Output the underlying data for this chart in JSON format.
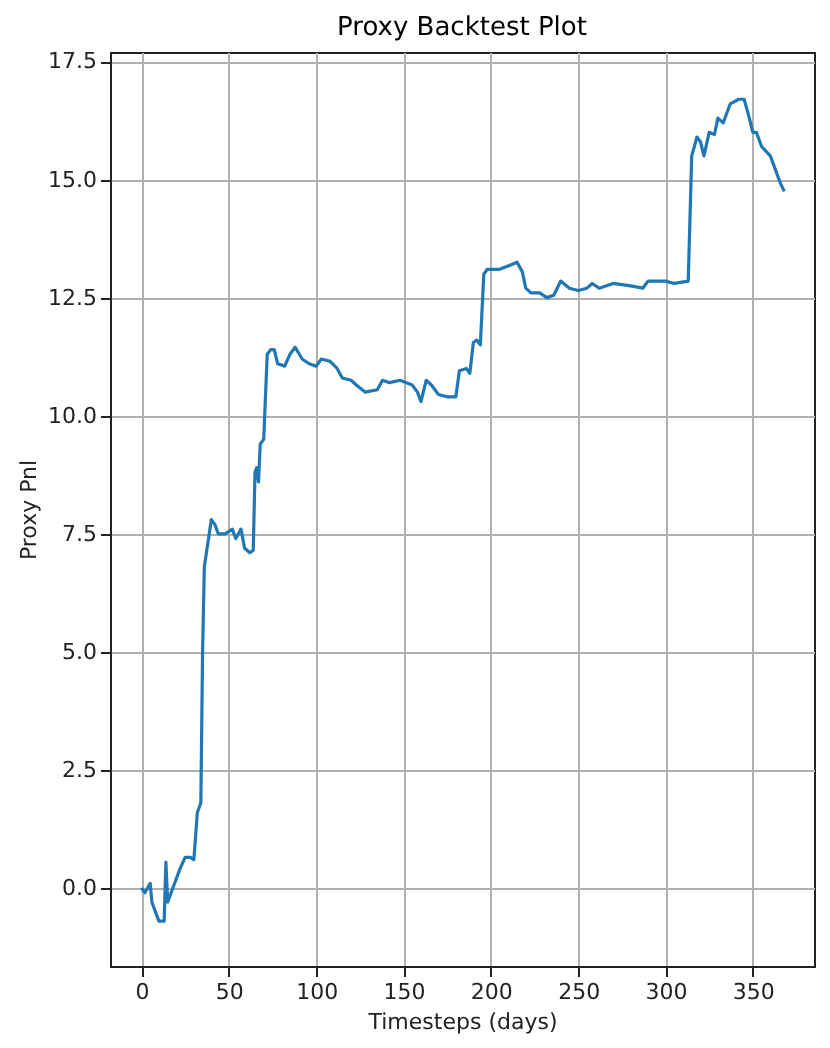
{
  "chart_data": {
    "type": "line",
    "title": "Proxy Backtest Plot",
    "xlabel": "Timesteps (days)",
    "ylabel": "Proxy Pnl",
    "x": [
      0,
      2,
      5,
      6,
      8,
      10,
      13,
      14,
      15,
      18,
      22,
      25,
      28,
      30,
      32,
      34,
      35,
      36,
      38,
      40,
      42,
      44,
      48,
      52,
      54,
      57,
      59,
      62,
      64,
      65,
      66,
      67,
      68,
      70,
      72,
      74,
      76,
      78,
      82,
      85,
      88,
      92,
      96,
      100,
      103,
      108,
      112,
      115,
      120,
      123,
      128,
      135,
      138,
      142,
      148,
      155,
      158,
      160,
      163,
      166,
      170,
      175,
      180,
      182,
      186,
      188,
      190,
      192,
      194,
      196,
      198,
      205,
      212,
      215,
      218,
      220,
      223,
      228,
      232,
      236,
      240,
      245,
      250,
      255,
      258,
      262,
      270,
      280,
      287,
      290,
      300,
      305,
      313,
      315,
      318,
      320,
      322,
      325,
      328,
      330,
      333,
      337,
      342,
      345,
      348,
      350,
      352,
      355,
      360,
      363,
      366,
      368
    ],
    "series": [
      {
        "color": "#1f77b4",
        "values": [
          0.0,
          -0.1,
          0.1,
          -0.3,
          -0.5,
          -0.7,
          -0.7,
          0.55,
          -0.3,
          0.0,
          0.4,
          0.65,
          0.65,
          0.6,
          1.6,
          1.8,
          5.0,
          6.8,
          7.3,
          7.8,
          7.7,
          7.5,
          7.5,
          7.6,
          7.4,
          7.6,
          7.2,
          7.1,
          7.15,
          8.8,
          8.9,
          8.6,
          9.4,
          9.5,
          11.3,
          11.4,
          11.4,
          11.1,
          11.05,
          11.3,
          11.45,
          11.2,
          11.1,
          11.05,
          11.2,
          11.15,
          11.0,
          10.8,
          10.75,
          10.65,
          10.5,
          10.55,
          10.75,
          10.7,
          10.75,
          10.65,
          10.5,
          10.3,
          10.75,
          10.65,
          10.45,
          10.4,
          10.4,
          10.95,
          11.0,
          10.9,
          11.55,
          11.6,
          11.5,
          13.0,
          13.1,
          13.1,
          13.2,
          13.25,
          13.05,
          12.7,
          12.6,
          12.6,
          12.5,
          12.55,
          12.85,
          12.7,
          12.65,
          12.7,
          12.8,
          12.7,
          12.8,
          12.75,
          12.7,
          12.85,
          12.85,
          12.8,
          12.85,
          15.5,
          15.9,
          15.8,
          15.5,
          16.0,
          15.95,
          16.3,
          16.2,
          16.6,
          16.7,
          16.7,
          16.3,
          16.0,
          16.0,
          15.7,
          15.5,
          15.2,
          14.9,
          14.75
        ]
      }
    ],
    "xlim": [
      -18,
      385
    ],
    "ylim": [
      -1.65,
      17.7
    ],
    "xticks": [
      0,
      50,
      100,
      150,
      200,
      250,
      300,
      350
    ],
    "yticks": [
      {
        "value": 0,
        "label": "0.0"
      },
      {
        "value": 2.5,
        "label": "2.5"
      },
      {
        "value": 5,
        "label": "5.0"
      },
      {
        "value": 7.5,
        "label": "7.5"
      },
      {
        "value": 10,
        "label": "10.0"
      },
      {
        "value": 12.5,
        "label": "12.5"
      },
      {
        "value": 15,
        "label": "15.0"
      },
      {
        "value": 17.5,
        "label": "17.5"
      }
    ],
    "grid": true,
    "line_style": "solid",
    "marker": "none"
  }
}
